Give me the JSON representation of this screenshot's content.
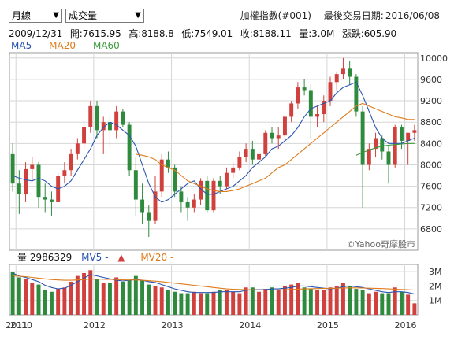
{
  "controls": {
    "period_select": "月線",
    "indicator_select": "成交量"
  },
  "header": {
    "name": "加權指數(#001)",
    "last_trade_label": "最後交易日期:",
    "last_trade_date": "2016/06/08"
  },
  "ohlc": {
    "date": "2009/12/31",
    "open": "開:7615.95",
    "high": "高:8188.8",
    "low": "低:7549.01",
    "close": "收:8188.11",
    "volume": "量:3.0M",
    "change": "漲跌:605.90"
  },
  "ma_legend": {
    "ma5": "MA5 -",
    "ma20": "MA20 -",
    "ma60": "MA60 -"
  },
  "vol_legend": {
    "vol": "量 2986329",
    "mv5": "MV5 -",
    "mv20": "MV20 -"
  },
  "watermark": "©Yahoo奇摩股市",
  "colors": {
    "up": "#d0403c",
    "down": "#2e8b3d",
    "ma5": "#2a55b0",
    "ma20": "#e07b1a",
    "ma60": "#3e9b3e",
    "grid": "#d6d6d6"
  },
  "chart_data": [
    {
      "type": "candlestick",
      "title": "",
      "y_axis_side": "right",
      "ylim": [
        6400,
        10100
      ],
      "y_ticks": [
        6800,
        7200,
        7600,
        8000,
        8400,
        8800,
        9200,
        9600,
        10000
      ],
      "x_ticks": [
        "2010",
        "2011",
        "2012",
        "2013",
        "2014",
        "2015",
        "2016"
      ],
      "candles": [
        {
          "o": 8200,
          "h": 8400,
          "l": 7500,
          "c": 7650
        },
        {
          "o": 7650,
          "h": 7900,
          "l": 7080,
          "c": 7450
        },
        {
          "o": 7450,
          "h": 8050,
          "l": 7300,
          "c": 7920
        },
        {
          "o": 7920,
          "h": 8150,
          "l": 7700,
          "c": 8000
        },
        {
          "o": 8000,
          "h": 8050,
          "l": 7200,
          "c": 7400
        },
        {
          "o": 7400,
          "h": 7650,
          "l": 7100,
          "c": 7350
        },
        {
          "o": 7350,
          "h": 7500,
          "l": 7050,
          "c": 7300
        },
        {
          "o": 7300,
          "h": 7850,
          "l": 7300,
          "c": 7800
        },
        {
          "o": 7800,
          "h": 8050,
          "l": 7650,
          "c": 7900
        },
        {
          "o": 7900,
          "h": 8300,
          "l": 7800,
          "c": 8200
        },
        {
          "o": 8200,
          "h": 8500,
          "l": 8100,
          "c": 8400
        },
        {
          "o": 8400,
          "h": 8800,
          "l": 8300,
          "c": 8700
        },
        {
          "o": 8700,
          "h": 9200,
          "l": 8600,
          "c": 9100
        },
        {
          "o": 9100,
          "h": 9200,
          "l": 8500,
          "c": 8650
        },
        {
          "o": 8650,
          "h": 8900,
          "l": 8200,
          "c": 8800
        },
        {
          "o": 8800,
          "h": 8950,
          "l": 8300,
          "c": 8650
        },
        {
          "o": 8650,
          "h": 9100,
          "l": 8500,
          "c": 9000
        },
        {
          "o": 9000,
          "h": 9050,
          "l": 8700,
          "c": 8750
        },
        {
          "o": 8750,
          "h": 8800,
          "l": 7800,
          "c": 7900
        },
        {
          "o": 7900,
          "h": 8150,
          "l": 7050,
          "c": 7350
        },
        {
          "o": 7350,
          "h": 7650,
          "l": 6900,
          "c": 7100
        },
        {
          "o": 7100,
          "h": 7250,
          "l": 6650,
          "c": 6950
        },
        {
          "o": 6950,
          "h": 7800,
          "l": 6900,
          "c": 7500
        },
        {
          "o": 7500,
          "h": 8200,
          "l": 7400,
          "c": 8100
        },
        {
          "o": 8100,
          "h": 8250,
          "l": 7850,
          "c": 7950
        },
        {
          "o": 7950,
          "h": 8000,
          "l": 7400,
          "c": 7500
        },
        {
          "o": 7500,
          "h": 7600,
          "l": 7100,
          "c": 7300
        },
        {
          "o": 7300,
          "h": 7400,
          "l": 6950,
          "c": 7200
        },
        {
          "o": 7200,
          "h": 7450,
          "l": 7100,
          "c": 7350
        },
        {
          "o": 7350,
          "h": 7750,
          "l": 7250,
          "c": 7700
        },
        {
          "o": 7700,
          "h": 7800,
          "l": 7100,
          "c": 7150
        },
        {
          "o": 7150,
          "h": 7750,
          "l": 7100,
          "c": 7700
        },
        {
          "o": 7700,
          "h": 7800,
          "l": 7450,
          "c": 7600
        },
        {
          "o": 7600,
          "h": 7950,
          "l": 7550,
          "c": 7850
        },
        {
          "o": 7850,
          "h": 8050,
          "l": 7750,
          "c": 7950
        },
        {
          "o": 7950,
          "h": 8250,
          "l": 7900,
          "c": 8150
        },
        {
          "o": 8150,
          "h": 8400,
          "l": 8050,
          "c": 8300
        },
        {
          "o": 8300,
          "h": 8450,
          "l": 8000,
          "c": 8100
        },
        {
          "o": 8100,
          "h": 8300,
          "l": 8000,
          "c": 8200
        },
        {
          "o": 8200,
          "h": 8650,
          "l": 8150,
          "c": 8600
        },
        {
          "o": 8600,
          "h": 8700,
          "l": 8400,
          "c": 8500
        },
        {
          "o": 8500,
          "h": 8700,
          "l": 8300,
          "c": 8550
        },
        {
          "o": 8550,
          "h": 8950,
          "l": 8450,
          "c": 8900
        },
        {
          "o": 8900,
          "h": 9200,
          "l": 8800,
          "c": 9150
        },
        {
          "o": 9150,
          "h": 9550,
          "l": 9050,
          "c": 9450
        },
        {
          "o": 9450,
          "h": 9600,
          "l": 9300,
          "c": 9400
        },
        {
          "o": 9400,
          "h": 9500,
          "l": 8500,
          "c": 8900
        },
        {
          "o": 8900,
          "h": 9100,
          "l": 8700,
          "c": 8950
        },
        {
          "o": 8950,
          "h": 9300,
          "l": 8800,
          "c": 9200
        },
        {
          "o": 9200,
          "h": 9650,
          "l": 9100,
          "c": 9550
        },
        {
          "o": 9550,
          "h": 9750,
          "l": 9400,
          "c": 9700
        },
        {
          "o": 9700,
          "h": 10000,
          "l": 9600,
          "c": 9800
        },
        {
          "o": 9800,
          "h": 9950,
          "l": 9500,
          "c": 9650
        },
        {
          "o": 9650,
          "h": 9700,
          "l": 8900,
          "c": 9000
        },
        {
          "o": 9000,
          "h": 9100,
          "l": 7200,
          "c": 8000
        },
        {
          "o": 8000,
          "h": 8400,
          "l": 7900,
          "c": 8300
        },
        {
          "o": 8300,
          "h": 8600,
          "l": 8150,
          "c": 8500
        },
        {
          "o": 8500,
          "h": 8550,
          "l": 8100,
          "c": 8250
        },
        {
          "o": 8250,
          "h": 8350,
          "l": 7650,
          "c": 8000
        },
        {
          "o": 8000,
          "h": 8750,
          "l": 7950,
          "c": 8700
        },
        {
          "o": 8700,
          "h": 8750,
          "l": 8300,
          "c": 8450
        },
        {
          "o": 8450,
          "h": 8600,
          "l": 8000,
          "c": 8600
        },
        {
          "o": 8600,
          "h": 8750,
          "l": 8450,
          "c": 8650
        }
      ],
      "ma_series": [
        {
          "name": "MA5",
          "values": [
            7800,
            7750,
            7720,
            7700,
            7750,
            7700,
            7600,
            7550,
            7600,
            7700,
            7900,
            8100,
            8300,
            8550,
            8700,
            8800,
            8750,
            8650,
            8550,
            8350,
            8000,
            7650,
            7400,
            7300,
            7350,
            7450,
            7550,
            7650,
            7700,
            7550,
            7450,
            7450,
            7500,
            7550,
            7600,
            7700,
            7800,
            7950,
            8050,
            8150,
            8300,
            8350,
            8450,
            8550,
            8700,
            8900,
            9050,
            9100,
            9150,
            9200,
            9350,
            9450,
            9500,
            9550,
            9300,
            9000,
            8700,
            8500,
            8400,
            8400,
            8400,
            8450,
            8500
          ]
        },
        {
          "name": "MA20",
          "values": [
            null,
            null,
            null,
            null,
            null,
            null,
            null,
            null,
            null,
            null,
            null,
            null,
            null,
            null,
            null,
            null,
            null,
            null,
            null,
            8200,
            8180,
            8150,
            8100,
            8000,
            7950,
            7900,
            7800,
            7700,
            7650,
            7600,
            7550,
            7520,
            7500,
            7500,
            7520,
            7550,
            7600,
            7650,
            7700,
            7750,
            7850,
            7950,
            8000,
            8100,
            8200,
            8300,
            8400,
            8500,
            8600,
            8700,
            8800,
            8900,
            9000,
            9100,
            9150,
            9100,
            9050,
            9000,
            8950,
            8900,
            8880,
            8850,
            8850
          ]
        },
        {
          "name": "MA60",
          "values": [
            null,
            null,
            null,
            null,
            null,
            null,
            null,
            null,
            null,
            null,
            null,
            null,
            null,
            null,
            null,
            null,
            null,
            null,
            null,
            null,
            null,
            null,
            null,
            null,
            null,
            null,
            null,
            null,
            null,
            null,
            null,
            null,
            null,
            null,
            null,
            null,
            null,
            null,
            null,
            null,
            null,
            null,
            null,
            null,
            null,
            null,
            null,
            null,
            null,
            null,
            null,
            null,
            null,
            8180,
            8230,
            8280,
            8320,
            8350,
            8370,
            8380,
            8390,
            8400,
            8400
          ]
        }
      ]
    },
    {
      "type": "bar",
      "title": "",
      "ylim": [
        0,
        3500000
      ],
      "y_ticks_labels": [
        {
          "v": 1000000,
          "t": "1M"
        },
        {
          "v": 2000000,
          "t": "2M"
        },
        {
          "v": 3000000,
          "t": "3M"
        }
      ],
      "values": [
        3000000,
        2600000,
        2500000,
        2200000,
        2100000,
        1700000,
        1600000,
        1800000,
        1900000,
        2300000,
        2700000,
        2900000,
        3100000,
        2500000,
        2200000,
        2200000,
        2600000,
        2300000,
        2400000,
        2700000,
        2400000,
        2100000,
        2000000,
        1900000,
        1700000,
        1600000,
        1500000,
        1500000,
        1600000,
        1500000,
        1500000,
        1600000,
        1700000,
        1700000,
        1600000,
        1500000,
        1900000,
        1900000,
        1600000,
        1800000,
        1900000,
        1700000,
        2000000,
        2100000,
        2200000,
        1900000,
        1800000,
        1700000,
        1700000,
        1900000,
        2000000,
        2200000,
        2000000,
        1800000,
        1700000,
        1500000,
        1600000,
        1500000,
        1500000,
        1900000,
        1600000,
        1400000,
        800000
      ],
      "ma_series": [
        {
          "name": "MV5",
          "values": [
            2900000,
            2700000,
            2600000,
            2450000,
            2300000,
            2050000,
            1900000,
            1800000,
            1850000,
            2050000,
            2300000,
            2550000,
            2800000,
            2700000,
            2600000,
            2500000,
            2400000,
            2350000,
            2400000,
            2450000,
            2400000,
            2300000,
            2250000,
            2100000,
            1950000,
            1800000,
            1700000,
            1600000,
            1550000,
            1550000,
            1550000,
            1550000,
            1600000,
            1600000,
            1600000,
            1600000,
            1700000,
            1750000,
            1750000,
            1750000,
            1800000,
            1800000,
            1850000,
            1900000,
            2000000,
            2000000,
            1950000,
            1900000,
            1850000,
            1800000,
            1850000,
            1950000,
            2000000,
            1950000,
            1900000,
            1800000,
            1700000,
            1600000,
            1550000,
            1600000,
            1600000,
            1550000,
            1450000
          ]
        },
        {
          "name": "MV20",
          "values": [
            2700000,
            2680000,
            2650000,
            2600000,
            2550000,
            2500000,
            2450000,
            2420000,
            2400000,
            2400000,
            2420000,
            2450000,
            2480000,
            2480000,
            2470000,
            2460000,
            2450000,
            2430000,
            2420000,
            2420000,
            2400000,
            2370000,
            2340000,
            2300000,
            2250000,
            2200000,
            2150000,
            2100000,
            2050000,
            2000000,
            1950000,
            1900000,
            1850000,
            1800000,
            1780000,
            1760000,
            1750000,
            1740000,
            1730000,
            1720000,
            1720000,
            1730000,
            1740000,
            1760000,
            1780000,
            1800000,
            1810000,
            1820000,
            1830000,
            1840000,
            1850000,
            1860000,
            1870000,
            1870000,
            1860000,
            1850000,
            1840000,
            1820000,
            1800000,
            1780000,
            1760000,
            1740000,
            1720000
          ]
        }
      ]
    }
  ]
}
